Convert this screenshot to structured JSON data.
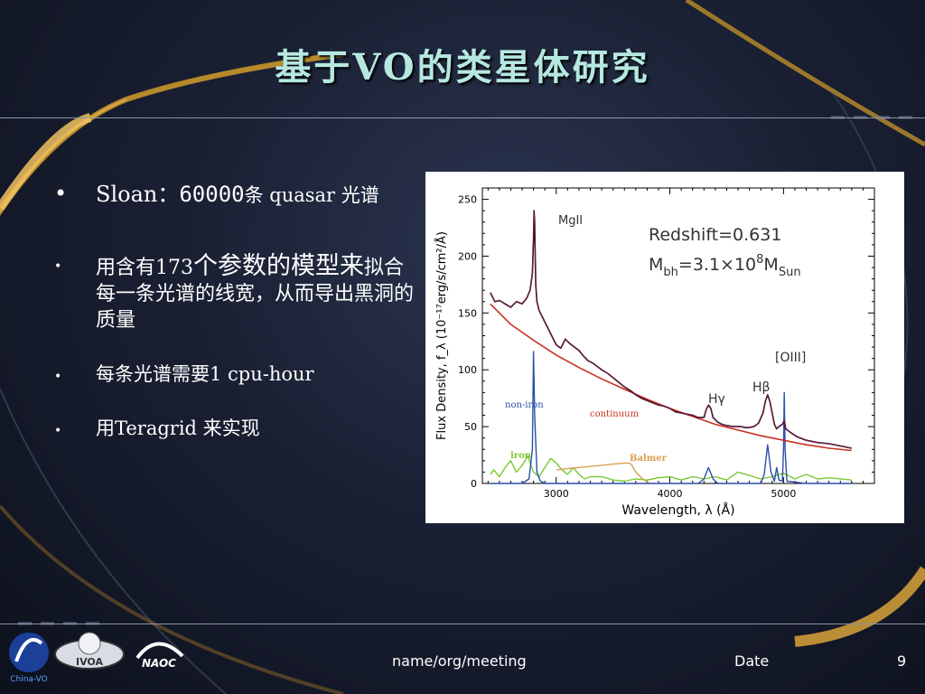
{
  "slide": {
    "title": "基于VO的类星体研究",
    "footer": {
      "center": "name/org/meeting",
      "date": "Date",
      "page": "9"
    }
  },
  "bullets": [
    {
      "sloan": "Sloan：",
      "count": "60000",
      "rest": "条 quasar 光谱"
    },
    {
      "prefix": "用含有173",
      "emph1": "个参数的模型",
      "emph2": "来",
      "rest": "拟合每一条光谱的线宽，从而导出黑洞的质量"
    },
    {
      "text": "每条光谱需要1 cpu-hour"
    },
    {
      "text": "用Teragrid 来实现"
    }
  ],
  "logos": {
    "logo1": "China-VO",
    "logo2": "IVOA",
    "logo3": "NAOC"
  },
  "chart_data": {
    "type": "line",
    "xlabel": "Wavelength, λ (Å)",
    "ylabel": "Flux Density, f_λ (10⁻¹⁷erg/s/cm²/Å)",
    "xlim": [
      2350,
      5800
    ],
    "ylim": [
      0,
      260
    ],
    "xticks": [
      3000,
      4000,
      5000
    ],
    "yticks": [
      0,
      50,
      100,
      150,
      200,
      250
    ],
    "annotations": {
      "redshift": "Redshift=0.631",
      "mbh_prefix": "M",
      "mbh_sub": "bh",
      "mbh_mid": "=3.1×10",
      "mbh_sup": "8",
      "mbh_m": "M",
      "mbh_sun": "Sun",
      "mgii": "MgII",
      "oiii": "[OIII]",
      "hbeta": "Hβ",
      "hgamma": "Hγ",
      "non_iron": "non-iron",
      "continuum": "continuum",
      "iron": "iron",
      "balmer": "Balmer"
    },
    "colors": {
      "observed": "#000000",
      "model": "#c02070",
      "continuum": "#c83020",
      "non_iron": "#2b4fa8",
      "iron": "#7ac832",
      "balmer": "#d8a050"
    },
    "series": [
      {
        "name": "continuum",
        "x": [
          2420,
          2600,
          2800,
          3000,
          3200,
          3400,
          3600,
          3800,
          4000,
          4200,
          4400,
          4600,
          4800,
          5000,
          5200,
          5400,
          5600
        ],
        "y": [
          158,
          140,
          126,
          113,
          102,
          92,
          83,
          74,
          66,
          59,
          52,
          47,
          42,
          38,
          34,
          31,
          29
        ]
      },
      {
        "name": "observed",
        "x": [
          2420,
          2460,
          2500,
          2550,
          2600,
          2650,
          2700,
          2740,
          2770,
          2790,
          2800,
          2805,
          2810,
          2815,
          2820,
          2830,
          2850,
          2880,
          2920,
          2960,
          3000,
          3040,
          3080,
          3120,
          3160,
          3200,
          3240,
          3280,
          3320,
          3360,
          3400,
          3450,
          3500,
          3550,
          3600,
          3650,
          3700,
          3750,
          3800,
          3850,
          3900,
          3950,
          4000,
          4050,
          4100,
          4150,
          4200,
          4250,
          4300,
          4320,
          4340,
          4360,
          4380,
          4420,
          4460,
          4500,
          4560,
          4620,
          4680,
          4740,
          4780,
          4820,
          4840,
          4860,
          4880,
          4900,
          4920,
          4940,
          4960,
          4990,
          5007,
          5020,
          5060,
          5120,
          5200,
          5300,
          5400,
          5500,
          5600
        ],
        "y": [
          168,
          160,
          161,
          158,
          155,
          160,
          158,
          163,
          170,
          185,
          215,
          240,
          230,
          200,
          175,
          160,
          152,
          146,
          138,
          130,
          122,
          119,
          127,
          123,
          120,
          117,
          112,
          108,
          106,
          103,
          100,
          97,
          93,
          89,
          85,
          82,
          78,
          75,
          73,
          71,
          69,
          68,
          66,
          63,
          62,
          61,
          60,
          58,
          58,
          65,
          69,
          66,
          58,
          54,
          52,
          51,
          50,
          50,
          49,
          50,
          53,
          62,
          72,
          78,
          72,
          62,
          52,
          48,
          50,
          52,
          55,
          48,
          45,
          41,
          38,
          36,
          35,
          33,
          31
        ]
      },
      {
        "name": "non-iron",
        "x": [
          2420,
          2700,
          2760,
          2790,
          2800,
          2810,
          2830,
          2860,
          2900,
          3000,
          3400,
          3800,
          4250,
          4300,
          4340,
          4380,
          4420,
          4800,
          4830,
          4860,
          4890,
          4920,
          4940,
          4960,
          4990,
          5000,
          5007,
          5014,
          5030,
          5200,
          5600
        ],
        "y": [
          0,
          0,
          4,
          30,
          116,
          60,
          10,
          2,
          0,
          0,
          0,
          0,
          0,
          4,
          14,
          4,
          0,
          0,
          8,
          34,
          10,
          2,
          14,
          3,
          2,
          30,
          80,
          30,
          2,
          0,
          0
        ]
      },
      {
        "name": "iron",
        "x": [
          2420,
          2450,
          2500,
          2550,
          2600,
          2650,
          2700,
          2750,
          2800,
          2850,
          2900,
          2950,
          3000,
          3050,
          3100,
          3150,
          3200,
          3250,
          3300,
          3400,
          3500,
          3600,
          3700,
          3800,
          3900,
          4000,
          4100,
          4200,
          4300,
          4400,
          4500,
          4600,
          4700,
          4800,
          4900,
          5000,
          5100,
          5200,
          5300,
          5400,
          5600
        ],
        "y": [
          8,
          12,
          6,
          14,
          20,
          10,
          16,
          24,
          10,
          6,
          14,
          22,
          18,
          12,
          8,
          14,
          8,
          4,
          6,
          6,
          3,
          2,
          4,
          3,
          5,
          6,
          3,
          6,
          4,
          6,
          3,
          10,
          7,
          4,
          6,
          9,
          4,
          8,
          4,
          5,
          3
        ]
      },
      {
        "name": "Balmer",
        "x": [
          3000,
          3100,
          3200,
          3300,
          3400,
          3500,
          3600,
          3640,
          3660,
          3700,
          3760,
          3820
        ],
        "y": [
          12,
          13,
          14,
          15,
          16,
          17,
          18,
          18,
          17,
          10,
          4,
          0
        ]
      }
    ]
  }
}
